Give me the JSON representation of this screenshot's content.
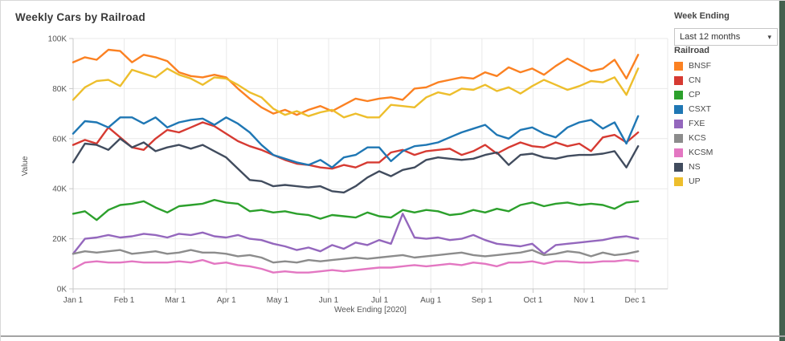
{
  "window": {
    "accent_strip_color": "#44604E",
    "background_color": "#ffffff"
  },
  "controls": {
    "week_ending_label": "Week Ending",
    "dropdown_value": "Last 12 months",
    "dropdown_caret": "▾"
  },
  "legend": {
    "title": "Railroad"
  },
  "chart_data": {
    "type": "line",
    "title": "Weekly Cars by Railroad",
    "xlabel": "Week Ending [2020]",
    "ylabel": "Value",
    "x_ticks": [
      "Jan 1",
      "Feb 1",
      "Mar 1",
      "Apr 1",
      "May 1",
      "Jun 1",
      "Jul 1",
      "Aug 1",
      "Sep 1",
      "Oct 1",
      "Nov 1",
      "Dec 1"
    ],
    "y_ticks": [
      "0K",
      "20K",
      "40K",
      "60K",
      "80K",
      "100K"
    ],
    "y_tick_values": [
      0,
      20,
      40,
      60,
      80,
      100
    ],
    "ylim": [
      0,
      100
    ],
    "grid": true,
    "legend_position": "right",
    "x_unit": "weeks (Jan 1 2020 – Dec 6 2020)",
    "values_unit": "thousand cars",
    "series": [
      {
        "name": "BNSF",
        "color": "#FB8122",
        "values": [
          90.5,
          92.5,
          91.5,
          95.5,
          95,
          90.5,
          93.5,
          92.5,
          91,
          86.5,
          85,
          84.5,
          85.5,
          84.5,
          80,
          76,
          72.5,
          70,
          71.5,
          69.5,
          71.5,
          73,
          71,
          73.5,
          76,
          75,
          76,
          76.5,
          75.5,
          80,
          80.5,
          82.5,
          83.5,
          84.5,
          84,
          86.5,
          85,
          88.5,
          86.5,
          88,
          85.5,
          89,
          92,
          89.5,
          87,
          88,
          91.5,
          84,
          93.5
        ]
      },
      {
        "name": "CN",
        "color": "#D63A32",
        "values": [
          57.5,
          59.5,
          58,
          64.5,
          60.5,
          56.5,
          55.5,
          60,
          63.5,
          62.5,
          64.5,
          66.5,
          65,
          62,
          59,
          57,
          55.5,
          53.5,
          51.5,
          50,
          49.5,
          48.5,
          48,
          49.5,
          48.5,
          50.5,
          50.5,
          54.5,
          55.5,
          53.5,
          55,
          55.5,
          56,
          53.5,
          55,
          57.5,
          54,
          56.5,
          58.5,
          57,
          56.5,
          58.5,
          57,
          58,
          55,
          60.5,
          61.5,
          58.5,
          62.5
        ]
      },
      {
        "name": "CP",
        "color": "#2CA02C",
        "values": [
          30,
          31,
          27.5,
          31.5,
          33.5,
          34,
          35,
          32.5,
          30.5,
          33,
          33.5,
          34,
          35.5,
          34.5,
          34,
          31,
          31.5,
          30.5,
          31,
          30,
          29.5,
          28,
          29.5,
          29,
          28.5,
          30.5,
          29,
          28.5,
          31.5,
          30.5,
          31.5,
          31,
          29.5,
          30,
          31.5,
          30.5,
          32,
          31,
          33.5,
          34.5,
          33,
          34,
          34.5,
          33.5,
          34,
          33.5,
          32,
          34.5,
          35
        ]
      },
      {
        "name": "CSXT",
        "color": "#1F77B4",
        "values": [
          62,
          67,
          66.5,
          64.5,
          68.5,
          68.5,
          66,
          68.5,
          64.5,
          66.5,
          67.5,
          68,
          65.5,
          68.5,
          66,
          62.5,
          57.5,
          53.5,
          52,
          50.5,
          49.5,
          51.5,
          48.5,
          52.5,
          53.5,
          56.5,
          56.5,
          51,
          55,
          57,
          57.5,
          58.5,
          60.5,
          62.5,
          64,
          65.5,
          61.5,
          60,
          63.5,
          64.5,
          62,
          60.5,
          64.5,
          66.5,
          67.5,
          64,
          66.5,
          58,
          69
        ]
      },
      {
        "name": "FXE",
        "color": "#9467BD",
        "values": [
          14,
          20,
          20.5,
          21.5,
          20.5,
          21,
          22,
          21.5,
          20.5,
          22,
          21.5,
          22.5,
          21,
          20.5,
          21.5,
          20,
          19.5,
          18,
          17,
          15.5,
          16.5,
          15,
          17.5,
          16,
          18.5,
          17.5,
          19.5,
          18,
          30,
          20.5,
          20,
          20.5,
          19.5,
          20,
          21.5,
          19.5,
          18,
          17.5,
          17,
          18,
          14,
          17.5,
          18,
          18.5,
          19,
          19.5,
          20.5,
          21,
          20
        ]
      },
      {
        "name": "KCS",
        "color": "#8C8C8C",
        "values": [
          14,
          15,
          14.5,
          15,
          15.5,
          14,
          14.5,
          15,
          14,
          14.5,
          15.5,
          14.5,
          14.5,
          14,
          13,
          13.5,
          12.5,
          10.5,
          11,
          10.5,
          11.5,
          11,
          11.5,
          12,
          12.5,
          12,
          12.5,
          13,
          13.5,
          12.5,
          13,
          13.5,
          14,
          14.5,
          13.5,
          13,
          13.5,
          14,
          14.5,
          15.5,
          13.5,
          14,
          15,
          14.5,
          13,
          14.5,
          13.5,
          14,
          15
        ]
      },
      {
        "name": "KCSM",
        "color": "#E377C2",
        "values": [
          8,
          10.5,
          11,
          10.5,
          10.5,
          11,
          10.5,
          10.5,
          10.5,
          11,
          10.5,
          11.5,
          10,
          10.5,
          9.5,
          9,
          8,
          6.5,
          7,
          6.5,
          6.5,
          7,
          7.5,
          7,
          7.5,
          8,
          8.5,
          8.5,
          9,
          9.5,
          9,
          9.5,
          10,
          9.5,
          10.5,
          10,
          9,
          10.5,
          10.5,
          11,
          10,
          11,
          11,
          10.5,
          10.5,
          11,
          11,
          11.5,
          11
        ]
      },
      {
        "name": "NS",
        "color": "#414C5E",
        "values": [
          50.5,
          58,
          57.5,
          55.5,
          60,
          56.5,
          58.5,
          55,
          56.5,
          57.5,
          56,
          57.5,
          55,
          52.5,
          48,
          43.5,
          43,
          41,
          41.5,
          41,
          40.5,
          41,
          39,
          38.5,
          41,
          44.5,
          47,
          45,
          47.5,
          48.5,
          51.5,
          52.5,
          52,
          51.5,
          52,
          53.5,
          54.5,
          49.5,
          53.5,
          54,
          52.5,
          52,
          53,
          53.5,
          53.5,
          54,
          55,
          48.5,
          57
        ]
      },
      {
        "name": "UP",
        "color": "#EDBE2C",
        "values": [
          75.5,
          80.5,
          83,
          83.5,
          81,
          87.5,
          86,
          84.5,
          88,
          85.5,
          84,
          81.5,
          84.5,
          84,
          81.5,
          78.5,
          76.5,
          72,
          69.5,
          71,
          69,
          70.5,
          71.5,
          68.5,
          70,
          68.5,
          68.5,
          73.5,
          73,
          72.5,
          76.5,
          78.5,
          77.5,
          80,
          79.5,
          81.5,
          79,
          80.5,
          78,
          81,
          83.5,
          81.5,
          79.5,
          81,
          83,
          82.5,
          84.5,
          77.5,
          88
        ]
      }
    ]
  }
}
